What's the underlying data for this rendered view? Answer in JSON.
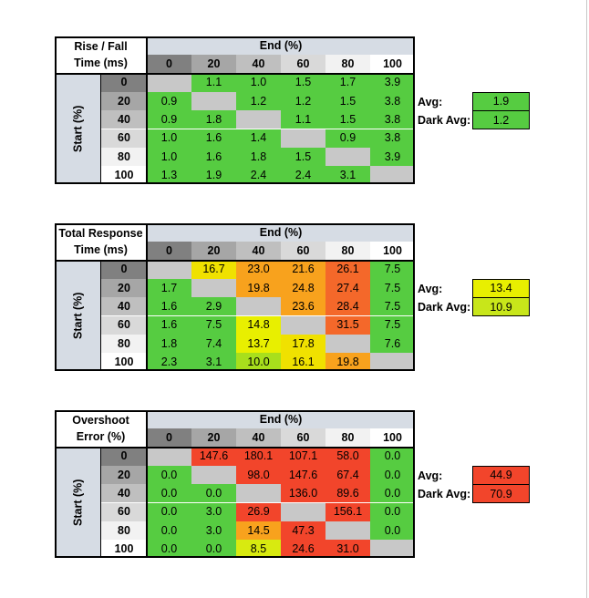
{
  "chart_data": [
    {
      "type": "table",
      "title_lines": [
        "Rise / Fall",
        "Time (ms)"
      ],
      "column_header": "End (%)",
      "row_header": "Start (%)",
      "columns": [
        "0",
        "20",
        "40",
        "60",
        "80",
        "100"
      ],
      "rows": [
        {
          "label": "0",
          "values": [
            "",
            "1.1",
            "1.0",
            "1.5",
            "1.7",
            "3.9"
          ]
        },
        {
          "label": "20",
          "values": [
            "0.9",
            "",
            "1.2",
            "1.2",
            "1.5",
            "3.8"
          ]
        },
        {
          "label": "40",
          "values": [
            "0.9",
            "1.8",
            "",
            "1.1",
            "1.5",
            "3.8"
          ]
        },
        {
          "label": "60",
          "values": [
            "1.0",
            "1.6",
            "1.4",
            "",
            "0.9",
            "3.8"
          ]
        },
        {
          "label": "80",
          "values": [
            "1.0",
            "1.6",
            "1.8",
            "1.5",
            "",
            "3.9"
          ]
        },
        {
          "label": "100",
          "values": [
            "1.3",
            "1.9",
            "2.4",
            "2.4",
            "3.1",
            ""
          ]
        }
      ],
      "cell_colors": [
        [
          "#c8c8c8",
          "#56cc41",
          "#56cc41",
          "#56cc41",
          "#56cc41",
          "#56cc41"
        ],
        [
          "#56cc41",
          "#c8c8c8",
          "#56cc41",
          "#56cc41",
          "#56cc41",
          "#56cc41"
        ],
        [
          "#56cc41",
          "#56cc41",
          "#c8c8c8",
          "#56cc41",
          "#56cc41",
          "#56cc41"
        ],
        [
          "#56cc41",
          "#56cc41",
          "#56cc41",
          "#c8c8c8",
          "#56cc41",
          "#56cc41"
        ],
        [
          "#56cc41",
          "#56cc41",
          "#56cc41",
          "#56cc41",
          "#c8c8c8",
          "#56cc41"
        ],
        [
          "#56cc41",
          "#56cc41",
          "#56cc41",
          "#56cc41",
          "#56cc41",
          "#c8c8c8"
        ]
      ],
      "avg": {
        "label": "Avg:",
        "value": "1.9",
        "color": "#56cc41"
      },
      "dark_avg": {
        "label": "Dark Avg:",
        "value": "1.2",
        "color": "#56cc41"
      }
    },
    {
      "type": "table",
      "title_lines": [
        "Total Response",
        "Time (ms)"
      ],
      "column_header": "End (%)",
      "row_header": "Start (%)",
      "columns": [
        "0",
        "20",
        "40",
        "60",
        "80",
        "100"
      ],
      "rows": [
        {
          "label": "0",
          "values": [
            "",
            "16.7",
            "23.0",
            "21.6",
            "26.1",
            "7.5"
          ]
        },
        {
          "label": "20",
          "values": [
            "1.7",
            "",
            "19.8",
            "24.8",
            "27.4",
            "7.5"
          ]
        },
        {
          "label": "40",
          "values": [
            "1.6",
            "2.9",
            "",
            "23.6",
            "28.4",
            "7.5"
          ]
        },
        {
          "label": "60",
          "values": [
            "1.6",
            "7.5",
            "14.8",
            "",
            "31.5",
            "7.5"
          ]
        },
        {
          "label": "80",
          "values": [
            "1.8",
            "7.4",
            "13.7",
            "17.8",
            "",
            "7.6"
          ]
        },
        {
          "label": "100",
          "values": [
            "2.3",
            "3.1",
            "10.0",
            "16.1",
            "19.8",
            ""
          ]
        }
      ],
      "cell_colors": [
        [
          "#c8c8c8",
          "#f0e100",
          "#f8a21d",
          "#f8a21d",
          "#f4682a",
          "#56cc41"
        ],
        [
          "#56cc41",
          "#c8c8c8",
          "#f8a21d",
          "#f8a21d",
          "#f4682a",
          "#56cc41"
        ],
        [
          "#56cc41",
          "#56cc41",
          "#c8c8c8",
          "#f8a21d",
          "#f4682a",
          "#56cc41"
        ],
        [
          "#56cc41",
          "#56cc41",
          "#e8ef00",
          "#c8c8c8",
          "#f4682a",
          "#56cc41"
        ],
        [
          "#56cc41",
          "#56cc41",
          "#e8ef00",
          "#f0e100",
          "#c8c8c8",
          "#56cc41"
        ],
        [
          "#56cc41",
          "#56cc41",
          "#a8df1c",
          "#f0e100",
          "#f8a21d",
          "#c8c8c8"
        ]
      ],
      "avg": {
        "label": "Avg:",
        "value": "13.4",
        "color": "#e8ef00"
      },
      "dark_avg": {
        "label": "Dark Avg:",
        "value": "10.9",
        "color": "#c8e61a"
      }
    },
    {
      "type": "table",
      "title_lines": [
        "Overshoot",
        "Error (%)"
      ],
      "column_header": "End (%)",
      "row_header": "Start (%)",
      "columns": [
        "0",
        "20",
        "40",
        "60",
        "80",
        "100"
      ],
      "rows": [
        {
          "label": "0",
          "values": [
            "",
            "147.6",
            "180.1",
            "107.1",
            "58.0",
            "0.0"
          ]
        },
        {
          "label": "20",
          "values": [
            "0.0",
            "",
            "98.0",
            "147.6",
            "67.4",
            "0.0"
          ]
        },
        {
          "label": "40",
          "values": [
            "0.0",
            "0.0",
            "",
            "136.0",
            "89.6",
            "0.0"
          ]
        },
        {
          "label": "60",
          "values": [
            "0.0",
            "3.0",
            "26.9",
            "",
            "156.1",
            "0.0"
          ]
        },
        {
          "label": "80",
          "values": [
            "0.0",
            "3.0",
            "14.5",
            "47.3",
            "",
            "0.0"
          ]
        },
        {
          "label": "100",
          "values": [
            "0.0",
            "0.0",
            "8.5",
            "24.6",
            "31.0",
            ""
          ]
        }
      ],
      "cell_colors": [
        [
          "#c8c8c8",
          "#f2452b",
          "#f2452b",
          "#f2452b",
          "#f2452b",
          "#56cc41"
        ],
        [
          "#56cc41",
          "#c8c8c8",
          "#f2452b",
          "#f2452b",
          "#f2452b",
          "#56cc41"
        ],
        [
          "#56cc41",
          "#56cc41",
          "#c8c8c8",
          "#f2452b",
          "#f2452b",
          "#56cc41"
        ],
        [
          "#56cc41",
          "#56cc41",
          "#f2452b",
          "#c8c8c8",
          "#f2452b",
          "#56cc41"
        ],
        [
          "#56cc41",
          "#56cc41",
          "#f8a21d",
          "#f2452b",
          "#c8c8c8",
          "#56cc41"
        ],
        [
          "#56cc41",
          "#56cc41",
          "#d8ea10",
          "#f2452b",
          "#f2452b",
          "#c8c8c8"
        ]
      ],
      "avg": {
        "label": "Avg:",
        "value": "44.9",
        "color": "#f2452b"
      },
      "dark_avg": {
        "label": "Dark Avg:",
        "value": "70.9",
        "color": "#f2452b"
      }
    }
  ],
  "header_colors": {
    "end_band": "#d6dce4",
    "col_0": "#808080",
    "col_20": "#a6a6a6",
    "col_40": "#bfbfbf",
    "col_60": "#d9d9d9",
    "col_80": "#f2f2f2",
    "col_100": "#ffffff"
  }
}
